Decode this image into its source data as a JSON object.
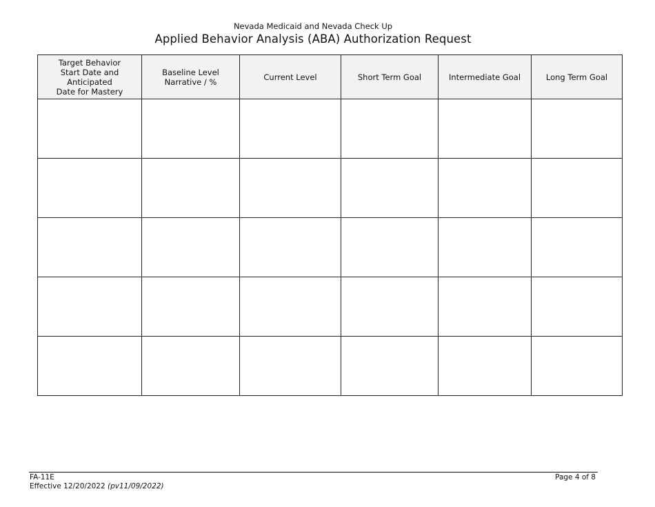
{
  "header": {
    "agency": "Nevada Medicaid and Nevada Check Up",
    "title": "Applied Behavior Analysis (ABA) Authorization Request"
  },
  "table": {
    "columns": [
      "Target Behavior\nStart Date and\nAnticipated\nDate for Mastery",
      "Baseline Level\nNarrative / %",
      "Current Level",
      "Short Term Goal",
      "Intermediate Goal",
      "Long Term Goal"
    ],
    "rows": [
      [
        "",
        "",
        "",
        "",
        "",
        ""
      ],
      [
        "",
        "",
        "",
        "",
        "",
        ""
      ],
      [
        "",
        "",
        "",
        "",
        "",
        ""
      ],
      [
        "",
        "",
        "",
        "",
        "",
        ""
      ],
      [
        "",
        "",
        "",
        "",
        "",
        ""
      ]
    ],
    "header_bg": "#f2f2f2"
  },
  "footer": {
    "form_id": "FA-11E",
    "effective": "Effective 12/20/2022 ",
    "revision": "(pv11/09/2022)",
    "page": "Page 4 of 8"
  }
}
